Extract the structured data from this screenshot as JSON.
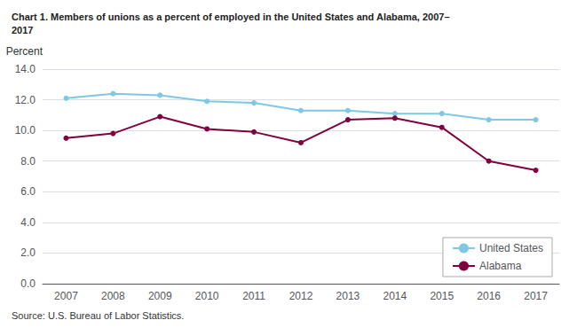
{
  "chart_data": {
    "type": "line",
    "title": "Chart 1. Members of unions as a percent of employed in the United States and Alabama, 2007–\n2017",
    "y_label": "Percent",
    "annotations": [
      "Source: U.S. Bureau of Labor Statistics."
    ],
    "categories": [
      "2007",
      "2008",
      "2009",
      "2010",
      "2011",
      "2012",
      "2013",
      "2014",
      "2015",
      "2016",
      "2017"
    ],
    "series": [
      {
        "name": "United States",
        "color": "#7ec8e3",
        "marker": "circle",
        "values": [
          12.1,
          12.4,
          12.3,
          11.9,
          11.8,
          11.3,
          11.3,
          11.1,
          11.1,
          10.7,
          10.7
        ]
      },
      {
        "name": "Alabama",
        "color": "#800040",
        "marker": "circle",
        "values": [
          9.5,
          9.8,
          10.9,
          10.1,
          9.9,
          9.2,
          10.7,
          10.8,
          10.2,
          8.0,
          7.4
        ]
      }
    ],
    "ylim": [
      0,
      14
    ],
    "yticks": [
      {
        "value": 0,
        "label": "0.0"
      },
      {
        "value": 2,
        "label": "2.0"
      },
      {
        "value": 4,
        "label": "4.0"
      },
      {
        "value": 6,
        "label": "6.0"
      },
      {
        "value": 8,
        "label": "8.0"
      },
      {
        "value": 10,
        "label": "10.0"
      },
      {
        "value": 12,
        "label": "12.0"
      },
      {
        "value": 14,
        "label": "14.0"
      }
    ],
    "grid": true,
    "legend": "lower right"
  }
}
